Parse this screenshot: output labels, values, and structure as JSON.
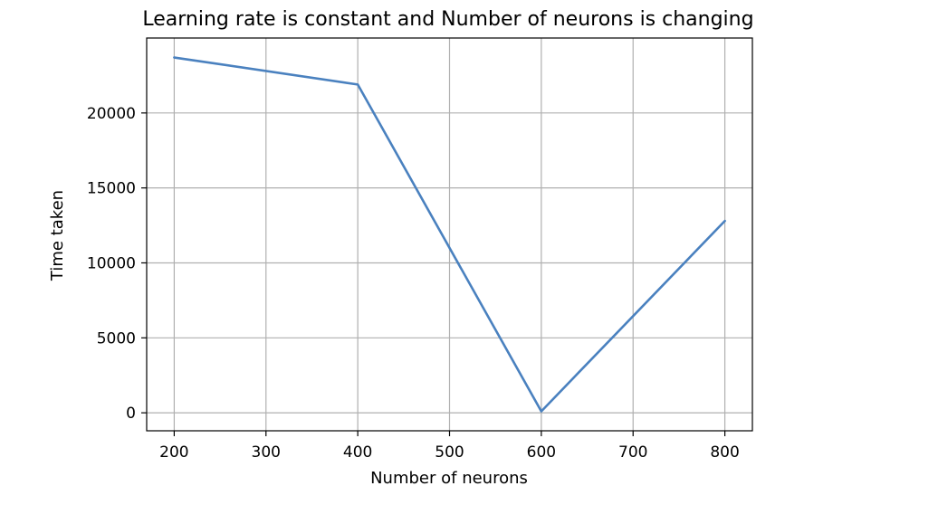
{
  "chart_data": {
    "type": "line",
    "title": "Learning rate is constant and Number of neurons is changing",
    "xlabel": "Number of neurons",
    "ylabel": "Time taken",
    "x": [
      200,
      400,
      600,
      800
    ],
    "series": [
      {
        "values": [
          23700,
          21900,
          100,
          12800
        ]
      }
    ],
    "xlim": [
      170,
      830
    ],
    "ylim": [
      -1200,
      25000
    ],
    "xticks": [
      200,
      300,
      400,
      500,
      600,
      700,
      800
    ],
    "yticks": [
      0,
      5000,
      10000,
      15000,
      20000
    ],
    "xtick_labels": [
      "200",
      "300",
      "400",
      "500",
      "600",
      "700",
      "800"
    ],
    "ytick_labels": [
      "0",
      "5000",
      "10000",
      "15000",
      "20000"
    ],
    "grid": true,
    "line_color": "#4a81bf",
    "grid_color": "#b0b0b0",
    "axes_color": "#000000"
  }
}
